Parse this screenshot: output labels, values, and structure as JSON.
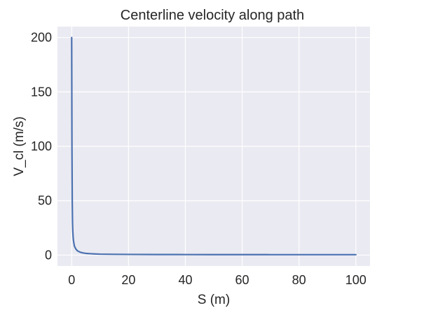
{
  "chart_data": {
    "type": "line",
    "title": "Centerline velocity along path",
    "xlabel": "S (m)",
    "ylabel": "V_cl (m/s)",
    "xlim": [
      -5,
      105
    ],
    "ylim": [
      -10,
      210
    ],
    "xticks": [
      0,
      20,
      40,
      60,
      80,
      100
    ],
    "yticks": [
      0,
      50,
      100,
      150,
      200
    ],
    "xtick_labels": [
      "0",
      "20",
      "40",
      "60",
      "80",
      "100"
    ],
    "ytick_labels": [
      "0",
      "50",
      "100",
      "150",
      "200"
    ],
    "grid": true,
    "series": [
      {
        "color": "#4c72b0",
        "x": [
          0,
          0.1,
          0.2,
          0.3,
          0.4,
          0.5,
          0.6,
          0.8,
          1.0,
          1.5,
          2.0,
          2.5,
          3.0,
          4.0,
          5.0,
          6.0,
          8.0,
          10.0,
          15.0,
          20.0,
          30.0,
          40.0,
          50.0,
          60.0,
          70.0,
          80.0,
          90.0,
          100.0
        ],
        "y": [
          200,
          100,
          50,
          30,
          22,
          17,
          14,
          10.5,
          8,
          5.5,
          4,
          3.3,
          2.7,
          2.0,
          1.6,
          1.4,
          1.1,
          0.9,
          0.75,
          0.65,
          0.55,
          0.5,
          0.47,
          0.45,
          0.43,
          0.42,
          0.41,
          0.4
        ]
      }
    ]
  }
}
